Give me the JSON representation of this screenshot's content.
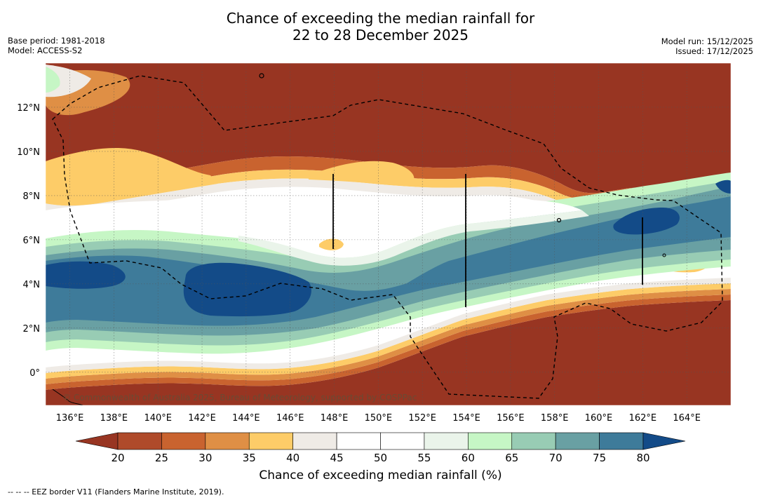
{
  "header": {
    "title_line1": "Chance of exceeding the median rainfall for",
    "title_line2": "22 to 28 December 2025",
    "base_period": "Base period: 1981-2018",
    "model": "Model: ACCESS-S2",
    "model_run": "Model run: 15/12/2025",
    "issued": "Issued: 17/12/2025"
  },
  "map": {
    "lon_labels": [
      "136°E",
      "138°E",
      "140°E",
      "142°E",
      "144°E",
      "146°E",
      "148°E",
      "150°E",
      "152°E",
      "154°E",
      "156°E",
      "158°E",
      "160°E",
      "162°E",
      "164°E"
    ],
    "lon_values": [
      136,
      138,
      140,
      142,
      144,
      146,
      148,
      150,
      152,
      154,
      156,
      158,
      160,
      162,
      164
    ],
    "lat_labels": [
      "12°N",
      "10°N",
      "8°N",
      "6°N",
      "4°N",
      "2°N",
      "0°"
    ],
    "lat_values": [
      12,
      10,
      8,
      6,
      4,
      2,
      0
    ],
    "lon_range": [
      134.9,
      166.0
    ],
    "lat_range": [
      -1.5,
      14.0
    ],
    "copyright": "© Commonwealth of Australia 2025, Bureau of Meteorology, supported by COSPPac"
  },
  "colorbar": {
    "ticks": [
      "20",
      "25",
      "30",
      "35",
      "40",
      "45",
      "50",
      "55",
      "60",
      "65",
      "70",
      "75",
      "80"
    ],
    "colors": [
      "#983522",
      "#af4a2a",
      "#c9632f",
      "#df8f45",
      "#fdcc68",
      "#efebe6",
      "#ffffff",
      "#ffffff",
      "#eaf4ea",
      "#c6f6c5",
      "#98ccb4",
      "#69a0a3",
      "#3e7b9a",
      "#134b88"
    ],
    "title": "Chance of exceeding median rainfall (%)"
  },
  "footnote": "--  --  -- EEZ border V11 (Flanders Marine Institute, 2019)."
}
